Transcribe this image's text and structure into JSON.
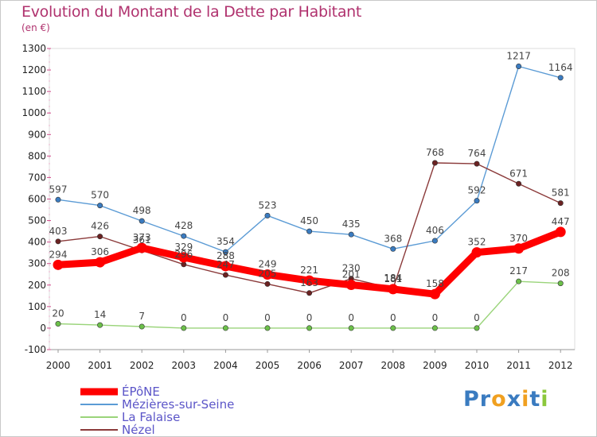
{
  "chart_data": {
    "type": "line",
    "title": "Evolution du Montant de la Dette par Habitant",
    "subtitle": "(en €)",
    "x": [
      "2000",
      "2001",
      "2002",
      "2003",
      "2004",
      "2005",
      "2006",
      "2007",
      "2008",
      "2009",
      "2010",
      "2011",
      "2012"
    ],
    "ylim": [
      -100,
      1300
    ],
    "yticks": [
      -100,
      0,
      100,
      200,
      300,
      400,
      500,
      600,
      700,
      800,
      900,
      1000,
      1100,
      1200,
      1300
    ],
    "grid": false,
    "legend_position": "bottom-left",
    "series": [
      {
        "name": "Mézières-sur-Seine",
        "color": "#5b9bd5",
        "marker": "#3a7bc0",
        "values": [
          597,
          570,
          498,
          428,
          354,
          523,
          450,
          435,
          368,
          406,
          592,
          1217,
          1164
        ],
        "labels": [
          "597",
          "570",
          "498",
          "428",
          "354",
          "523",
          "450",
          "435",
          "368",
          "406",
          "592",
          "1217",
          "1164"
        ]
      },
      {
        "name": "Nézel",
        "color": "#8b3a3a",
        "marker": "#6b2222",
        "values": [
          403,
          426,
          361,
          296,
          247,
          205,
          163,
          230,
          184,
          768,
          764,
          671,
          581
        ],
        "labels": [
          "403",
          "426",
          "361",
          "296",
          "247",
          "205",
          "163",
          "230",
          "184",
          "768",
          "764",
          "671",
          "581"
        ]
      },
      {
        "name": "La Falaise",
        "color": "#9ad47a",
        "marker": "#6cc04a",
        "values": [
          20,
          14,
          7,
          0,
          0,
          0,
          0,
          0,
          0,
          0,
          0,
          217,
          208
        ],
        "labels": [
          "20",
          "14",
          "7",
          "0",
          "0",
          "0",
          "0",
          "0",
          "0",
          "0",
          "0",
          "217",
          "208"
        ]
      },
      {
        "name": "ÉPôNE",
        "color": "#ff0000",
        "marker": "#ff0000",
        "thick": true,
        "values": [
          294,
          306,
          373,
          329,
          288,
          249,
          221,
          201,
          181,
          158,
          352,
          370,
          447
        ],
        "labels": [
          "294",
          "306",
          "373",
          "329",
          "288",
          "249",
          "221",
          "201",
          "181",
          "158",
          "352",
          "370",
          "447"
        ]
      }
    ],
    "legend": [
      {
        "name": "ÉPôNE",
        "color": "#ff0000"
      },
      {
        "name": "Mézières-sur-Seine",
        "color": "#5b9bd5"
      },
      {
        "name": "La Falaise",
        "color": "#9ad47a"
      },
      {
        "name": "Nézel",
        "color": "#8b3a3a"
      }
    ]
  },
  "brand": {
    "letters": [
      "P",
      "r",
      "o",
      "x",
      "i",
      "t",
      "i"
    ],
    "colors": [
      "#3a7bc0",
      "#3a7bc0",
      "#f0a020",
      "#3a7bc0",
      "#f0a020",
      "#3a7bc0",
      "#8cc83c"
    ]
  }
}
